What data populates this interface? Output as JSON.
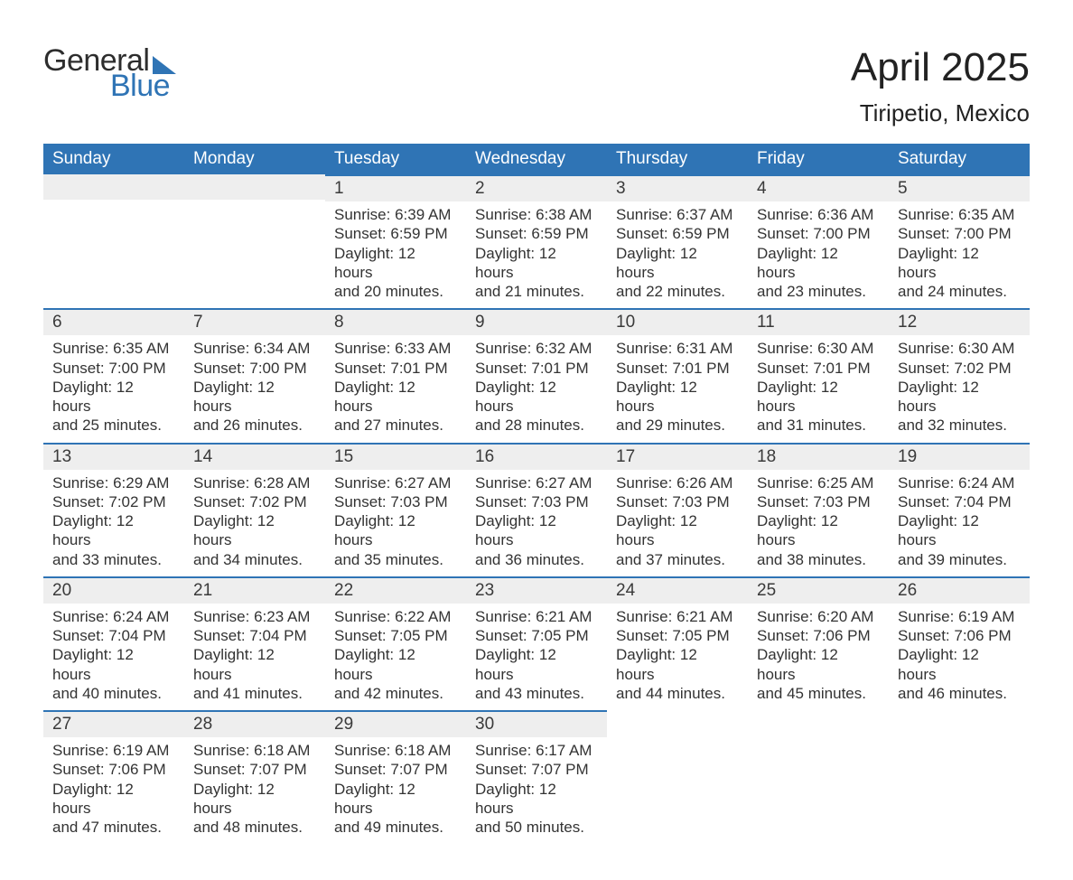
{
  "branding": {
    "logo_word1": "General",
    "logo_word2": "Blue",
    "logo_color_dark": "#2d2d2d",
    "logo_color_blue": "#2f74b5"
  },
  "header": {
    "month_title": "April 2025",
    "location": "Tiripetio, Mexico"
  },
  "styling": {
    "header_bg": "#2f74b5",
    "header_text": "#ffffff",
    "daynum_bg": "#eeeeee",
    "daynum_border": "#2f74b5",
    "body_text": "#333333",
    "page_bg": "#ffffff",
    "title_fontsize": 44,
    "location_fontsize": 26,
    "dayhead_fontsize": 19,
    "cell_fontsize": 17
  },
  "weekdays": [
    "Sunday",
    "Monday",
    "Tuesday",
    "Wednesday",
    "Thursday",
    "Friday",
    "Saturday"
  ],
  "weeks": [
    [
      null,
      null,
      {
        "n": "1",
        "sr": "Sunrise: 6:39 AM",
        "ss": "Sunset: 6:59 PM",
        "d1": "Daylight: 12 hours",
        "d2": "and 20 minutes."
      },
      {
        "n": "2",
        "sr": "Sunrise: 6:38 AM",
        "ss": "Sunset: 6:59 PM",
        "d1": "Daylight: 12 hours",
        "d2": "and 21 minutes."
      },
      {
        "n": "3",
        "sr": "Sunrise: 6:37 AM",
        "ss": "Sunset: 6:59 PM",
        "d1": "Daylight: 12 hours",
        "d2": "and 22 minutes."
      },
      {
        "n": "4",
        "sr": "Sunrise: 6:36 AM",
        "ss": "Sunset: 7:00 PM",
        "d1": "Daylight: 12 hours",
        "d2": "and 23 minutes."
      },
      {
        "n": "5",
        "sr": "Sunrise: 6:35 AM",
        "ss": "Sunset: 7:00 PM",
        "d1": "Daylight: 12 hours",
        "d2": "and 24 minutes."
      }
    ],
    [
      {
        "n": "6",
        "sr": "Sunrise: 6:35 AM",
        "ss": "Sunset: 7:00 PM",
        "d1": "Daylight: 12 hours",
        "d2": "and 25 minutes."
      },
      {
        "n": "7",
        "sr": "Sunrise: 6:34 AM",
        "ss": "Sunset: 7:00 PM",
        "d1": "Daylight: 12 hours",
        "d2": "and 26 minutes."
      },
      {
        "n": "8",
        "sr": "Sunrise: 6:33 AM",
        "ss": "Sunset: 7:01 PM",
        "d1": "Daylight: 12 hours",
        "d2": "and 27 minutes."
      },
      {
        "n": "9",
        "sr": "Sunrise: 6:32 AM",
        "ss": "Sunset: 7:01 PM",
        "d1": "Daylight: 12 hours",
        "d2": "and 28 minutes."
      },
      {
        "n": "10",
        "sr": "Sunrise: 6:31 AM",
        "ss": "Sunset: 7:01 PM",
        "d1": "Daylight: 12 hours",
        "d2": "and 29 minutes."
      },
      {
        "n": "11",
        "sr": "Sunrise: 6:30 AM",
        "ss": "Sunset: 7:01 PM",
        "d1": "Daylight: 12 hours",
        "d2": "and 31 minutes."
      },
      {
        "n": "12",
        "sr": "Sunrise: 6:30 AM",
        "ss": "Sunset: 7:02 PM",
        "d1": "Daylight: 12 hours",
        "d2": "and 32 minutes."
      }
    ],
    [
      {
        "n": "13",
        "sr": "Sunrise: 6:29 AM",
        "ss": "Sunset: 7:02 PM",
        "d1": "Daylight: 12 hours",
        "d2": "and 33 minutes."
      },
      {
        "n": "14",
        "sr": "Sunrise: 6:28 AM",
        "ss": "Sunset: 7:02 PM",
        "d1": "Daylight: 12 hours",
        "d2": "and 34 minutes."
      },
      {
        "n": "15",
        "sr": "Sunrise: 6:27 AM",
        "ss": "Sunset: 7:03 PM",
        "d1": "Daylight: 12 hours",
        "d2": "and 35 minutes."
      },
      {
        "n": "16",
        "sr": "Sunrise: 6:27 AM",
        "ss": "Sunset: 7:03 PM",
        "d1": "Daylight: 12 hours",
        "d2": "and 36 minutes."
      },
      {
        "n": "17",
        "sr": "Sunrise: 6:26 AM",
        "ss": "Sunset: 7:03 PM",
        "d1": "Daylight: 12 hours",
        "d2": "and 37 minutes."
      },
      {
        "n": "18",
        "sr": "Sunrise: 6:25 AM",
        "ss": "Sunset: 7:03 PM",
        "d1": "Daylight: 12 hours",
        "d2": "and 38 minutes."
      },
      {
        "n": "19",
        "sr": "Sunrise: 6:24 AM",
        "ss": "Sunset: 7:04 PM",
        "d1": "Daylight: 12 hours",
        "d2": "and 39 minutes."
      }
    ],
    [
      {
        "n": "20",
        "sr": "Sunrise: 6:24 AM",
        "ss": "Sunset: 7:04 PM",
        "d1": "Daylight: 12 hours",
        "d2": "and 40 minutes."
      },
      {
        "n": "21",
        "sr": "Sunrise: 6:23 AM",
        "ss": "Sunset: 7:04 PM",
        "d1": "Daylight: 12 hours",
        "d2": "and 41 minutes."
      },
      {
        "n": "22",
        "sr": "Sunrise: 6:22 AM",
        "ss": "Sunset: 7:05 PM",
        "d1": "Daylight: 12 hours",
        "d2": "and 42 minutes."
      },
      {
        "n": "23",
        "sr": "Sunrise: 6:21 AM",
        "ss": "Sunset: 7:05 PM",
        "d1": "Daylight: 12 hours",
        "d2": "and 43 minutes."
      },
      {
        "n": "24",
        "sr": "Sunrise: 6:21 AM",
        "ss": "Sunset: 7:05 PM",
        "d1": "Daylight: 12 hours",
        "d2": "and 44 minutes."
      },
      {
        "n": "25",
        "sr": "Sunrise: 6:20 AM",
        "ss": "Sunset: 7:06 PM",
        "d1": "Daylight: 12 hours",
        "d2": "and 45 minutes."
      },
      {
        "n": "26",
        "sr": "Sunrise: 6:19 AM",
        "ss": "Sunset: 7:06 PM",
        "d1": "Daylight: 12 hours",
        "d2": "and 46 minutes."
      }
    ],
    [
      {
        "n": "27",
        "sr": "Sunrise: 6:19 AM",
        "ss": "Sunset: 7:06 PM",
        "d1": "Daylight: 12 hours",
        "d2": "and 47 minutes."
      },
      {
        "n": "28",
        "sr": "Sunrise: 6:18 AM",
        "ss": "Sunset: 7:07 PM",
        "d1": "Daylight: 12 hours",
        "d2": "and 48 minutes."
      },
      {
        "n": "29",
        "sr": "Sunrise: 6:18 AM",
        "ss": "Sunset: 7:07 PM",
        "d1": "Daylight: 12 hours",
        "d2": "and 49 minutes."
      },
      {
        "n": "30",
        "sr": "Sunrise: 6:17 AM",
        "ss": "Sunset: 7:07 PM",
        "d1": "Daylight: 12 hours",
        "d2": "and 50 minutes."
      },
      null,
      null,
      null
    ]
  ]
}
